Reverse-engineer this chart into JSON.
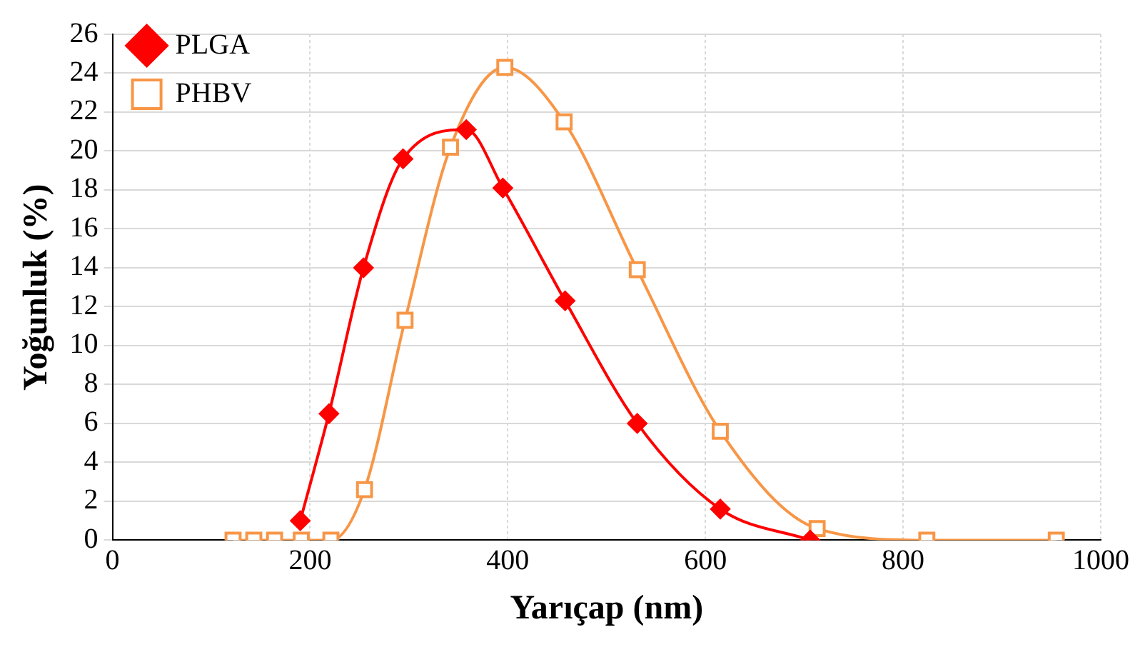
{
  "chart_data": {
    "type": "line",
    "xlabel": "Yarıçap (nm)",
    "ylabel": "Yoğunluk (%)",
    "xlim": [
      0,
      1000
    ],
    "xticks": [
      0,
      200,
      400,
      600,
      800,
      1000
    ],
    "ylim": [
      0,
      26
    ],
    "yticks": [
      0,
      2,
      4,
      6,
      8,
      10,
      12,
      14,
      16,
      18,
      20,
      22,
      24,
      26
    ],
    "grid": true,
    "legend": "top left",
    "series": [
      {
        "name": "PLGA",
        "color": "#ff0000",
        "marker": "diamond",
        "x": [
          190,
          219,
          254,
          294,
          358,
          395,
          458,
          531,
          615,
          706
        ],
        "values": [
          1.0,
          6.5,
          14.0,
          19.6,
          21.1,
          18.1,
          12.3,
          6.0,
          1.6,
          0
        ]
      },
      {
        "name": "PHBV",
        "color": "#f79646",
        "marker": "square",
        "x": [
          122,
          143,
          164,
          191,
          221,
          255,
          296,
          342,
          397,
          457,
          531,
          615,
          713,
          824,
          955
        ],
        "values": [
          0,
          0,
          0,
          0,
          0,
          2.6,
          11.3,
          20.2,
          24.3,
          21.5,
          13.9,
          5.6,
          0.6,
          0,
          0
        ]
      }
    ]
  }
}
